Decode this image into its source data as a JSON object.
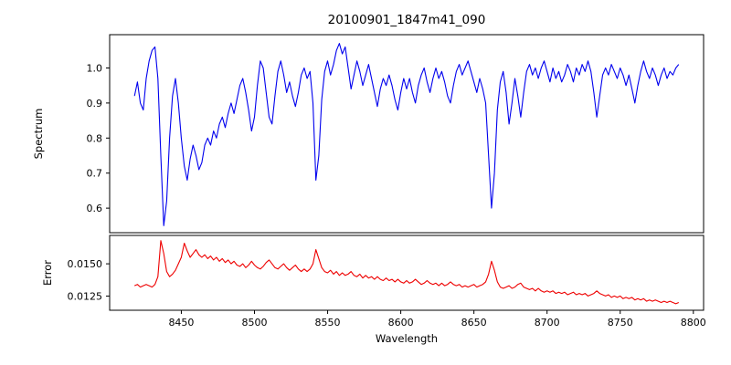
{
  "figure": {
    "background": "#ffffff",
    "border_color": "#000000"
  },
  "chart_data": {
    "type": "line",
    "title": "20100901_1847m41_090",
    "xlabel": "Wavelength",
    "x_start": 8418,
    "x_step": 2,
    "xlim": [
      8401,
      8807
    ],
    "xticks": [
      8450,
      8500,
      8550,
      8600,
      8650,
      8700,
      8750,
      8800
    ],
    "grid": false,
    "legend": "none",
    "subplots": [
      {
        "name": "spectrum",
        "ylabel": "Spectrum",
        "color": "#0000ee",
        "ylim": [
          0.53,
          1.095
        ],
        "yticks": [
          0.6,
          0.7,
          0.8,
          0.9,
          1.0
        ],
        "yticklabels": [
          "0.6",
          "0.7",
          "0.8",
          "0.9",
          "1.0"
        ],
        "values": [
          0.92,
          0.96,
          0.9,
          0.88,
          0.97,
          1.02,
          1.05,
          1.06,
          0.97,
          0.75,
          0.55,
          0.62,
          0.8,
          0.92,
          0.97,
          0.9,
          0.8,
          0.72,
          0.68,
          0.74,
          0.78,
          0.75,
          0.71,
          0.73,
          0.78,
          0.8,
          0.78,
          0.82,
          0.8,
          0.84,
          0.86,
          0.83,
          0.87,
          0.9,
          0.87,
          0.91,
          0.95,
          0.97,
          0.93,
          0.88,
          0.82,
          0.86,
          0.95,
          1.02,
          1.0,
          0.93,
          0.86,
          0.84,
          0.92,
          0.99,
          1.02,
          0.98,
          0.93,
          0.96,
          0.92,
          0.89,
          0.93,
          0.98,
          1.0,
          0.97,
          0.99,
          0.9,
          0.68,
          0.75,
          0.91,
          0.99,
          1.02,
          0.98,
          1.01,
          1.05,
          1.07,
          1.04,
          1.06,
          1.0,
          0.94,
          0.98,
          1.02,
          0.99,
          0.95,
          0.98,
          1.01,
          0.97,
          0.93,
          0.89,
          0.94,
          0.97,
          0.95,
          0.98,
          0.95,
          0.91,
          0.88,
          0.93,
          0.97,
          0.94,
          0.97,
          0.93,
          0.9,
          0.95,
          0.98,
          1.0,
          0.96,
          0.93,
          0.97,
          1.0,
          0.97,
          0.99,
          0.96,
          0.92,
          0.9,
          0.95,
          0.99,
          1.01,
          0.98,
          1.0,
          1.02,
          0.99,
          0.96,
          0.93,
          0.97,
          0.94,
          0.9,
          0.75,
          0.6,
          0.7,
          0.88,
          0.96,
          0.99,
          0.93,
          0.84,
          0.9,
          0.97,
          0.92,
          0.86,
          0.93,
          0.99,
          1.01,
          0.98,
          1.0,
          0.97,
          1.0,
          1.02,
          0.99,
          0.96,
          1.0,
          0.97,
          0.99,
          0.96,
          0.98,
          1.01,
          0.99,
          0.96,
          1.0,
          0.98,
          1.01,
          0.99,
          1.02,
          0.99,
          0.93,
          0.86,
          0.92,
          0.98,
          1.0,
          0.98,
          1.01,
          0.99,
          0.97,
          1.0,
          0.98,
          0.95,
          0.98,
          0.94,
          0.9,
          0.95,
          0.99,
          1.02,
          0.99,
          0.97,
          1.0,
          0.98,
          0.95,
          0.98,
          1.0,
          0.97,
          0.99,
          0.98,
          1.0,
          1.01
        ]
      },
      {
        "name": "error",
        "ylabel": "Error",
        "color": "#ee0000",
        "ylim": [
          0.0114,
          0.0172
        ],
        "yticks": [
          0.0125,
          0.015
        ],
        "yticklabels": [
          "0.0125",
          "0.0150"
        ],
        "values": [
          0.0133,
          0.0134,
          0.0132,
          0.0133,
          0.0134,
          0.0133,
          0.0132,
          0.0134,
          0.014,
          0.0168,
          0.0158,
          0.0144,
          0.014,
          0.0142,
          0.0145,
          0.015,
          0.0155,
          0.0166,
          0.016,
          0.0155,
          0.0158,
          0.0161,
          0.0157,
          0.0155,
          0.0157,
          0.0154,
          0.0156,
          0.0153,
          0.0155,
          0.0152,
          0.0154,
          0.0151,
          0.0153,
          0.015,
          0.0152,
          0.0149,
          0.0148,
          0.015,
          0.0147,
          0.0149,
          0.0152,
          0.0149,
          0.0147,
          0.0146,
          0.0148,
          0.0151,
          0.0153,
          0.015,
          0.0147,
          0.0146,
          0.0148,
          0.015,
          0.0147,
          0.0145,
          0.0147,
          0.0149,
          0.0146,
          0.0144,
          0.0146,
          0.0144,
          0.0146,
          0.015,
          0.0161,
          0.0154,
          0.0147,
          0.0144,
          0.0143,
          0.0145,
          0.0142,
          0.0144,
          0.0141,
          0.0143,
          0.0141,
          0.0142,
          0.0144,
          0.0141,
          0.014,
          0.0142,
          0.0139,
          0.0141,
          0.0139,
          0.014,
          0.0138,
          0.014,
          0.0138,
          0.0137,
          0.0139,
          0.0137,
          0.0138,
          0.0136,
          0.0138,
          0.0136,
          0.0135,
          0.0137,
          0.0135,
          0.0136,
          0.0138,
          0.0136,
          0.0134,
          0.0135,
          0.0137,
          0.0135,
          0.0134,
          0.0135,
          0.0133,
          0.0135,
          0.0133,
          0.0134,
          0.0136,
          0.0134,
          0.0133,
          0.0134,
          0.0132,
          0.0133,
          0.0132,
          0.0133,
          0.0134,
          0.0132,
          0.0133,
          0.0134,
          0.0136,
          0.0142,
          0.0152,
          0.0145,
          0.0136,
          0.0132,
          0.0131,
          0.0132,
          0.0133,
          0.0131,
          0.0132,
          0.0134,
          0.0135,
          0.0132,
          0.0131,
          0.013,
          0.0131,
          0.0129,
          0.0131,
          0.0129,
          0.0128,
          0.0129,
          0.0128,
          0.0129,
          0.0127,
          0.0128,
          0.0127,
          0.0128,
          0.0126,
          0.0127,
          0.0128,
          0.0126,
          0.0127,
          0.0126,
          0.0127,
          0.0125,
          0.0126,
          0.0127,
          0.0129,
          0.0127,
          0.0126,
          0.0125,
          0.0126,
          0.0124,
          0.0125,
          0.0124,
          0.0125,
          0.0123,
          0.0124,
          0.0123,
          0.0124,
          0.0122,
          0.0123,
          0.0122,
          0.0123,
          0.0121,
          0.0122,
          0.0121,
          0.0122,
          0.0121,
          0.012,
          0.0121,
          0.012,
          0.0121,
          0.012,
          0.0119,
          0.012
        ]
      }
    ]
  }
}
